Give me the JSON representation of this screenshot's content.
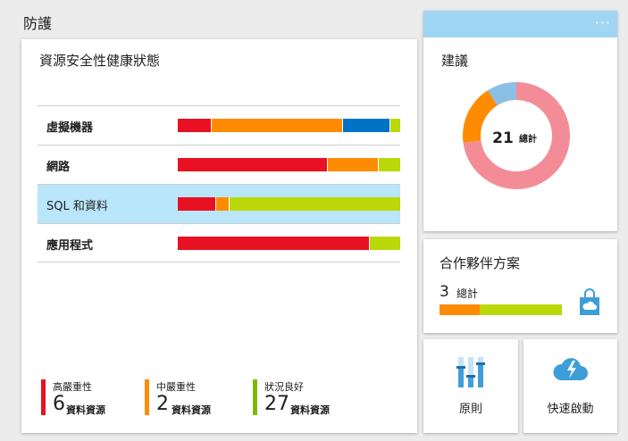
{
  "page": {
    "section_title": "防護"
  },
  "health": {
    "title": "資源安全性健康狀態",
    "rows": [
      {
        "label": "虛擬機器",
        "segments": [
          {
            "color": "#e81123",
            "value": 15
          },
          {
            "color": "#ff8c00",
            "value": 59
          },
          {
            "color": "#0072c6",
            "value": 21
          },
          {
            "color": "#bad80a",
            "value": 5
          }
        ]
      },
      {
        "label": "網路",
        "segments": [
          {
            "color": "#e81123",
            "value": 67
          },
          {
            "color": "#ff8c00",
            "value": 23
          },
          {
            "color": "#bad80a",
            "value": 10
          }
        ]
      },
      {
        "label": "SQL 和資料",
        "segments": [
          {
            "color": "#e81123",
            "value": 17
          },
          {
            "color": "#ff8c00",
            "value": 6
          },
          {
            "color": "#bad80a",
            "value": 77
          }
        ]
      },
      {
        "label": "應用程式",
        "segments": [
          {
            "color": "#e81123",
            "value": 86
          },
          {
            "color": "#bad80a",
            "value": 14
          }
        ]
      }
    ],
    "legend": [
      {
        "label": "高嚴重性",
        "count": "6",
        "unit": "資料資源",
        "color": "#e81123"
      },
      {
        "label": "中嚴重性",
        "count": "2",
        "unit": "資料資源",
        "color": "#ff8c00"
      },
      {
        "label": "狀況良好",
        "count": "27",
        "unit": "資料資源",
        "color": "#7fba00"
      }
    ]
  },
  "recommendations": {
    "title": "建議",
    "more": "···",
    "total": "21",
    "total_label": "總計",
    "chart_data": {
      "type": "pie",
      "values": [
        16,
        4,
        2
      ],
      "colors": [
        "#f48c97",
        "#ff8c00",
        "#8bbfe3"
      ]
    }
  },
  "partner": {
    "title": "合作夥伴方案",
    "count": "3",
    "count_label": "總計",
    "segments": [
      {
        "color": "#ff8c00",
        "value": 33
      },
      {
        "color": "#bad80a",
        "value": 67
      }
    ]
  },
  "tiles": {
    "policy": "原則",
    "quick_start": "快速啟動"
  }
}
